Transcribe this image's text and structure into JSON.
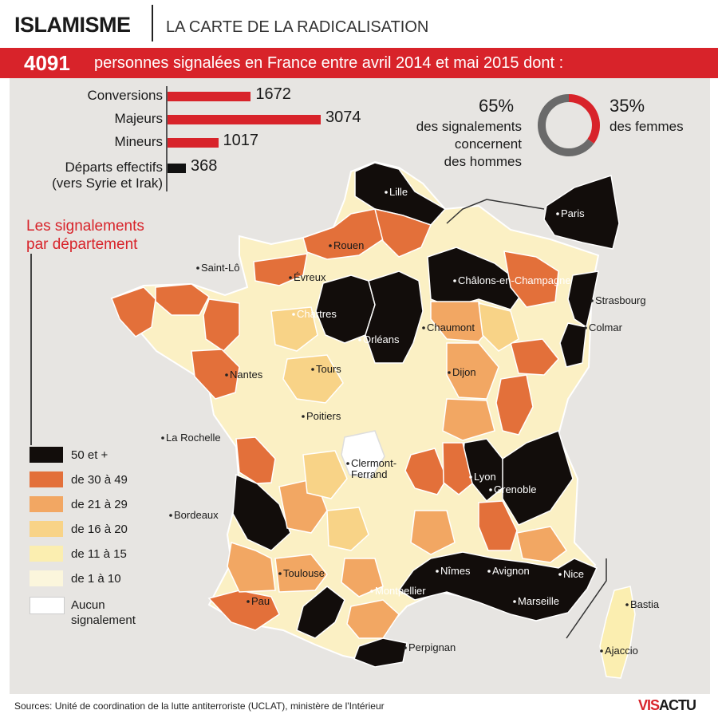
{
  "header": {
    "kicker": "ISLAMISME",
    "title": "LA CARTE DE LA RADICALISATION"
  },
  "banner": {
    "total": "4091",
    "text": "personnes signalées en France entre avril 2014 et mai 2015 dont :"
  },
  "stats": [
    {
      "label": "Conversions",
      "value": "1672",
      "number": 1672
    },
    {
      "label": "Majeurs",
      "value": "3074",
      "number": 3074
    },
    {
      "label": "Mineurs",
      "value": "1017",
      "number": 1017
    },
    {
      "label": "Départs effectifs\n(vers Syrie et Irak)",
      "value": "368",
      "number": 368
    }
  ],
  "donut": {
    "men_pct": "65%",
    "men_text": "des signalements\nconcernent\ndes hommes",
    "women_pct": "35%",
    "women_text": "des femmes",
    "men_share": 0.65,
    "women_share": 0.35,
    "men_color": "#6a6a6a",
    "women_color": "#d8232a"
  },
  "legend": {
    "title": "Les signalements\npar département",
    "items": [
      {
        "label": "50 et +",
        "color": "#120d0b"
      },
      {
        "label": "de 30 à 49",
        "color": "#e3703a"
      },
      {
        "label": "de 21 à 29",
        "color": "#f2a763"
      },
      {
        "label": "de 16 à 20",
        "color": "#f8d387"
      },
      {
        "label": "de 11 à 15",
        "color": "#fbeeb0"
      },
      {
        "label": "de 1 à 10",
        "color": "#fbf6dc"
      },
      {
        "label": "Aucun\nsignalement",
        "color": "#ffffff"
      }
    ]
  },
  "cities": [
    {
      "name": "Lille",
      "dark": true
    },
    {
      "name": "Paris",
      "dark": true
    },
    {
      "name": "Rouen",
      "dark": false
    },
    {
      "name": "Saint-Lô",
      "dark": false
    },
    {
      "name": "Évreux",
      "dark": false
    },
    {
      "name": "Châlons-en-Champagne",
      "dark": true
    },
    {
      "name": "Strasbourg",
      "dark": false
    },
    {
      "name": "Chartres",
      "dark": true
    },
    {
      "name": "Colmar",
      "dark": false
    },
    {
      "name": "Chaumont",
      "dark": false
    },
    {
      "name": "Orléans",
      "dark": true
    },
    {
      "name": "Tours",
      "dark": false
    },
    {
      "name": "Dijon",
      "dark": false
    },
    {
      "name": "Nantes",
      "dark": false
    },
    {
      "name": "Poitiers",
      "dark": false
    },
    {
      "name": "La Rochelle",
      "dark": false
    },
    {
      "name": "Clermont-\nFerrand",
      "dark": false
    },
    {
      "name": "Lyon",
      "dark": true
    },
    {
      "name": "Grenoble",
      "dark": true
    },
    {
      "name": "Bordeaux",
      "dark": false
    },
    {
      "name": "Nîmes",
      "dark": true
    },
    {
      "name": "Avignon",
      "dark": true
    },
    {
      "name": "Nice",
      "dark": true
    },
    {
      "name": "Toulouse",
      "dark": false
    },
    {
      "name": "Montpellier",
      "dark": true
    },
    {
      "name": "Marseille",
      "dark": true
    },
    {
      "name": "Bastia",
      "dark": false
    },
    {
      "name": "Pau",
      "dark": false
    },
    {
      "name": "Ajaccio",
      "dark": false
    },
    {
      "name": "Perpignan",
      "dark": false
    }
  ],
  "footer": {
    "source": "Sources: Unité de coordination de la lutte antiterroriste (UCLAT), ministère de l'Intérieur",
    "logo_a": "VIS",
    "logo_b": "ACTU"
  }
}
